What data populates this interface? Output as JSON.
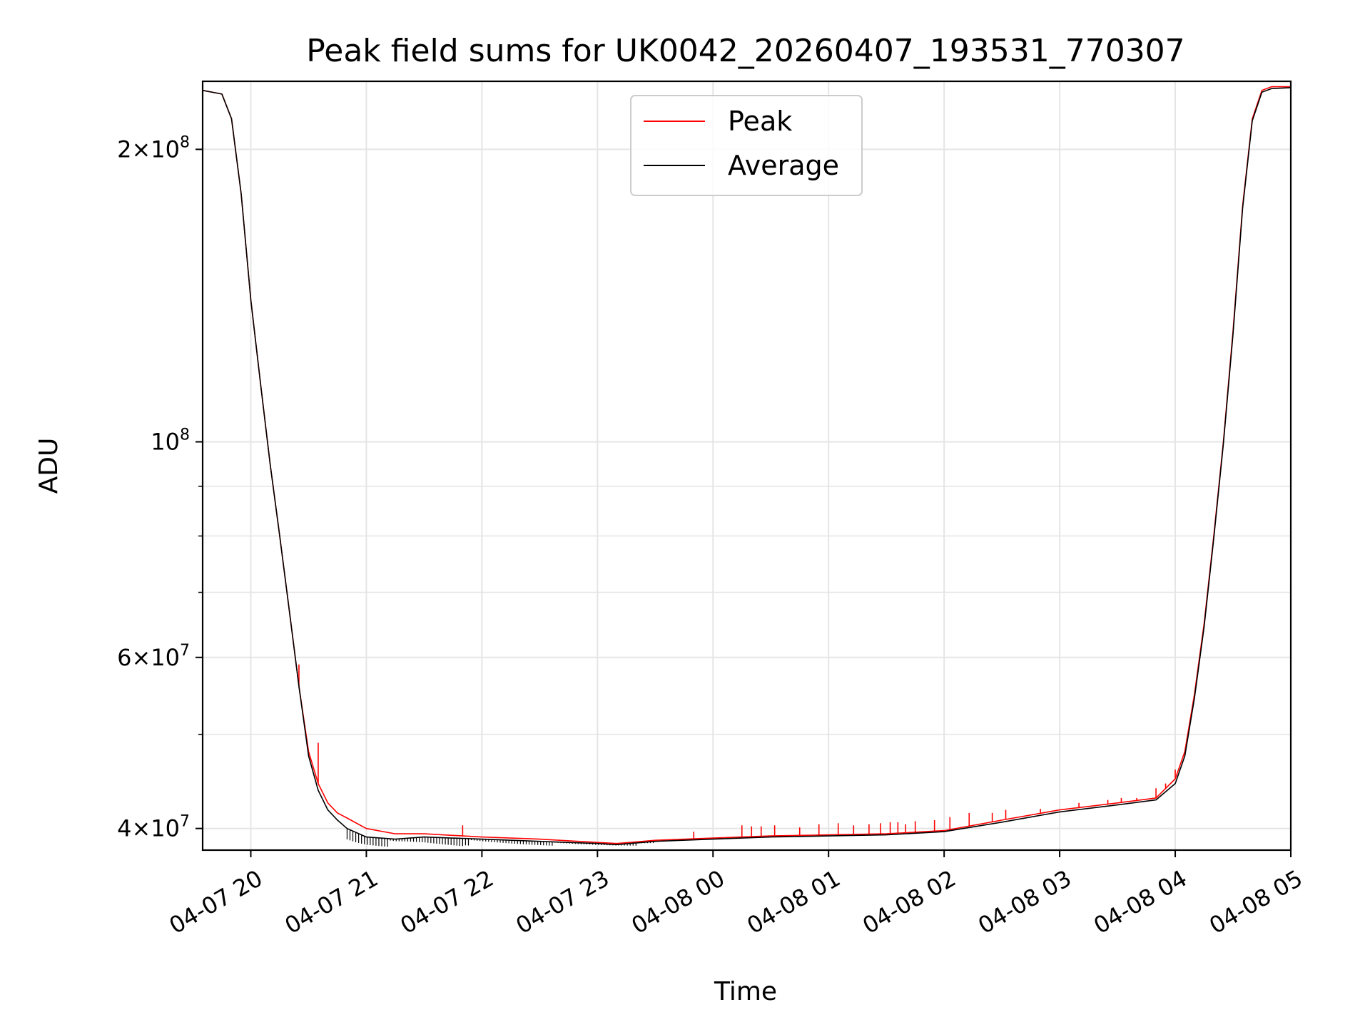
{
  "chart_data": {
    "type": "line",
    "title": "Peak field sums for UK0042_20260407_193531_770307",
    "xlabel": "Time",
    "ylabel": "ADU",
    "x_ticks": [
      "04-07 20",
      "04-07 21",
      "04-07 22",
      "04-07 23",
      "04-08 00",
      "04-08 01",
      "04-08 02",
      "04-08 03",
      "04-08 04",
      "04-08 05"
    ],
    "y_ticks": [
      {
        "value": 40000000,
        "base": "4",
        "exp": "7"
      },
      {
        "value": 60000000,
        "base": "6",
        "exp": "7"
      },
      {
        "value": 100000000,
        "base": "",
        "exp": "8"
      },
      {
        "value": 200000000,
        "base": "2",
        "exp": "8"
      }
    ],
    "y_scale": "log",
    "y_minor_ticks": [
      50000000,
      70000000,
      80000000,
      90000000,
      300000000
    ],
    "xlim": [
      "2026-04-07 19:35",
      "2026-04-08 05:00"
    ],
    "ylim": [
      38000000,
      235000000
    ],
    "grid": true,
    "legend_position": "upper center",
    "series": [
      {
        "name": "Peak",
        "color": "#ff0000",
        "x": [
          "2026-04-07 19:35",
          "2026-04-07 19:45",
          "2026-04-07 19:50",
          "2026-04-07 19:55",
          "2026-04-07 20:00",
          "2026-04-07 20:05",
          "2026-04-07 20:10",
          "2026-04-07 20:15",
          "2026-04-07 20:20",
          "2026-04-07 20:25",
          "2026-04-07 20:30",
          "2026-04-07 20:35",
          "2026-04-07 20:40",
          "2026-04-07 20:45",
          "2026-04-07 20:50",
          "2026-04-07 21:00",
          "2026-04-07 21:15",
          "2026-04-07 21:30",
          "2026-04-07 22:00",
          "2026-04-07 22:30",
          "2026-04-07 23:00",
          "2026-04-07 23:10",
          "2026-04-07 23:30",
          "2026-04-08 00:00",
          "2026-04-08 00:30",
          "2026-04-08 01:00",
          "2026-04-08 01:30",
          "2026-04-08 02:00",
          "2026-04-08 02:30",
          "2026-04-08 03:00",
          "2026-04-08 03:30",
          "2026-04-08 03:50",
          "2026-04-08 04:00",
          "2026-04-08 04:05",
          "2026-04-08 04:10",
          "2026-04-08 04:15",
          "2026-04-08 04:20",
          "2026-04-08 04:25",
          "2026-04-08 04:30",
          "2026-04-08 04:35",
          "2026-04-08 04:40",
          "2026-04-08 04:45",
          "2026-04-08 04:50",
          "2026-04-08 05:00"
        ],
        "values": [
          230000000,
          228000000,
          215000000,
          180000000,
          140000000,
          115000000,
          95000000,
          80000000,
          67000000,
          56000000,
          48000000,
          44500000,
          42500000,
          41500000,
          41000000,
          40000000,
          39500000,
          39500000,
          39200000,
          39000000,
          38700000,
          38600000,
          38900000,
          39100000,
          39300000,
          39400000,
          39500000,
          39800000,
          40800000,
          41800000,
          42500000,
          43000000,
          45000000,
          48000000,
          55000000,
          65000000,
          80000000,
          100000000,
          130000000,
          175000000,
          215000000,
          230000000,
          232000000,
          232000000
        ],
        "spikes": [
          {
            "x": "2026-04-07 20:25",
            "value": 59000000
          },
          {
            "x": "2026-04-07 20:35",
            "value": 49000000
          },
          {
            "x": "2026-04-07 21:50",
            "value": 40300000
          },
          {
            "x": "2026-04-07 23:50",
            "value": 39700000
          },
          {
            "x": "2026-04-08 00:15",
            "value": 40300000
          },
          {
            "x": "2026-04-08 00:20",
            "value": 40200000
          },
          {
            "x": "2026-04-08 00:25",
            "value": 40200000
          },
          {
            "x": "2026-04-08 00:32",
            "value": 40300000
          },
          {
            "x": "2026-04-08 00:45",
            "value": 40100000
          },
          {
            "x": "2026-04-08 00:55",
            "value": 40400000
          },
          {
            "x": "2026-04-08 01:05",
            "value": 40500000
          },
          {
            "x": "2026-04-08 01:13",
            "value": 40300000
          },
          {
            "x": "2026-04-08 01:21",
            "value": 40400000
          },
          {
            "x": "2026-04-08 01:27",
            "value": 40500000
          },
          {
            "x": "2026-04-08 01:32",
            "value": 40600000
          },
          {
            "x": "2026-04-08 01:36",
            "value": 40600000
          },
          {
            "x": "2026-04-08 01:40",
            "value": 40400000
          },
          {
            "x": "2026-04-08 01:45",
            "value": 40700000
          },
          {
            "x": "2026-04-08 01:55",
            "value": 40800000
          },
          {
            "x": "2026-04-08 02:03",
            "value": 41100000
          },
          {
            "x": "2026-04-08 02:13",
            "value": 41500000
          },
          {
            "x": "2026-04-08 02:25",
            "value": 41500000
          },
          {
            "x": "2026-04-08 02:32",
            "value": 41800000
          },
          {
            "x": "2026-04-08 02:50",
            "value": 41900000
          },
          {
            "x": "2026-04-08 03:10",
            "value": 42500000
          },
          {
            "x": "2026-04-08 03:25",
            "value": 42800000
          },
          {
            "x": "2026-04-08 03:32",
            "value": 43000000
          },
          {
            "x": "2026-04-08 03:40",
            "value": 43000000
          },
          {
            "x": "2026-04-08 03:50",
            "value": 44000000
          },
          {
            "x": "2026-04-08 03:55",
            "value": 44500000
          },
          {
            "x": "2026-04-08 04:00",
            "value": 46000000
          }
        ]
      },
      {
        "name": "Average",
        "color": "#000000",
        "x": [
          "2026-04-07 19:35",
          "2026-04-07 19:45",
          "2026-04-07 19:50",
          "2026-04-07 19:55",
          "2026-04-07 20:00",
          "2026-04-07 20:05",
          "2026-04-07 20:10",
          "2026-04-07 20:15",
          "2026-04-07 20:20",
          "2026-04-07 20:25",
          "2026-04-07 20:30",
          "2026-04-07 20:35",
          "2026-04-07 20:40",
          "2026-04-07 20:45",
          "2026-04-07 20:50",
          "2026-04-07 21:00",
          "2026-04-07 21:15",
          "2026-04-07 21:30",
          "2026-04-07 22:00",
          "2026-04-07 22:30",
          "2026-04-07 23:00",
          "2026-04-07 23:10",
          "2026-04-07 23:30",
          "2026-04-08 00:00",
          "2026-04-08 00:30",
          "2026-04-08 01:00",
          "2026-04-08 01:30",
          "2026-04-08 02:00",
          "2026-04-08 02:30",
          "2026-04-08 03:00",
          "2026-04-08 03:30",
          "2026-04-08 03:50",
          "2026-04-08 04:00",
          "2026-04-08 04:05",
          "2026-04-08 04:10",
          "2026-04-08 04:15",
          "2026-04-08 04:20",
          "2026-04-08 04:25",
          "2026-04-08 04:30",
          "2026-04-08 04:35",
          "2026-04-08 04:40",
          "2026-04-08 04:45",
          "2026-04-08 04:50",
          "2026-04-08 05:00"
        ],
        "values": [
          230000000,
          228000000,
          215000000,
          180000000,
          140000000,
          115000000,
          95000000,
          80000000,
          67000000,
          56000000,
          47500000,
          43800000,
          41800000,
          40800000,
          40000000,
          39200000,
          39000000,
          39200000,
          39000000,
          38800000,
          38600000,
          38500000,
          38800000,
          39000000,
          39200000,
          39300000,
          39400000,
          39700000,
          40600000,
          41600000,
          42300000,
          42800000,
          44500000,
          47500000,
          54500000,
          64500000,
          79500000,
          99500000,
          129000000,
          174000000,
          214000000,
          229000000,
          231000000,
          231500000
        ],
        "noise": [
          {
            "from": "2026-04-07 20:50",
            "to": "2026-04-07 21:50",
            "low": 38300000
          },
          {
            "from": "2026-04-07 21:50",
            "to": "2026-04-07 23:30",
            "low": 38400000
          }
        ]
      }
    ]
  }
}
